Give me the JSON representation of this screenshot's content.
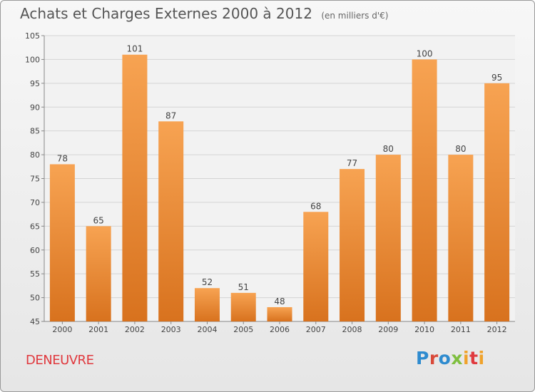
{
  "header": {
    "title": "Achats et Charges Externes 2000 à 2012",
    "unit": "(en milliers d'€)"
  },
  "footer": {
    "commune": "DENEUVRE",
    "logo_text": "Proxiti"
  },
  "colors": {
    "bar_top": "#f7a352",
    "bar_bottom": "#d8721e",
    "commune": "#e0393e"
  },
  "chart_data": {
    "type": "bar",
    "title": "Achats et Charges Externes 2000 à 2012",
    "subtitle": "(en milliers d'€)",
    "categories": [
      "2000",
      "2001",
      "2002",
      "2003",
      "2004",
      "2005",
      "2006",
      "2007",
      "2008",
      "2009",
      "2010",
      "2011",
      "2012"
    ],
    "values": [
      78,
      65,
      101,
      87,
      52,
      51,
      48,
      68,
      77,
      80,
      100,
      80,
      95
    ],
    "ylim": [
      45,
      105
    ],
    "yticks": [
      45,
      50,
      55,
      60,
      65,
      70,
      75,
      80,
      85,
      90,
      95,
      100,
      105
    ],
    "grid": true,
    "legend": "none"
  }
}
